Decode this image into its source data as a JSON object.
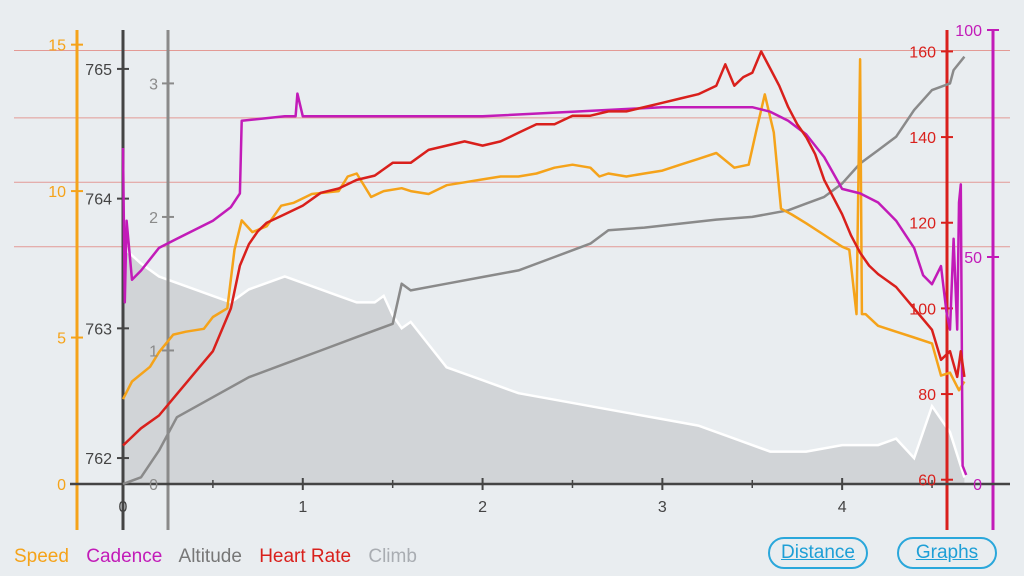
{
  "legend": {
    "speed": "Speed",
    "cadence": "Cadence",
    "altitude": "Altitude",
    "heart_rate": "Heart Rate",
    "climb": "Climb"
  },
  "buttons": {
    "distance": "Distance",
    "graphs": "Graphs"
  },
  "colors": {
    "speed": "#f5a31a",
    "cadence": "#c21bb8",
    "altitude": "#8a8a8a",
    "heart_rate": "#d9201c",
    "climb_fill": "#c8cbcf",
    "climb_line": "#ffffff",
    "background": "#e9edf0",
    "distance_axis": "#444444",
    "gridline": "#e39a95",
    "button": "#2aa7db"
  },
  "chart_data": {
    "type": "line",
    "grid": "horizontal lines only",
    "x": {
      "label": "",
      "range": [
        0,
        4.7
      ],
      "ticks": [
        0,
        1,
        2,
        3,
        4
      ],
      "tick_labels": [
        "0",
        "1",
        "2",
        "3",
        "4"
      ]
    },
    "axes": {
      "speed": {
        "range": [
          0,
          15.5
        ],
        "ticks": [
          0,
          5,
          10,
          15
        ],
        "tick_labels": [
          "0",
          "5",
          "10",
          "15"
        ]
      },
      "climb": {
        "range": [
          761.8,
          765.3
        ],
        "ticks": [
          762,
          763,
          764,
          765
        ],
        "tick_labels": [
          "762",
          "763",
          "764",
          "765"
        ]
      },
      "altitude": {
        "range": [
          0,
          3.4
        ],
        "ticks": [
          0,
          1,
          2,
          3
        ],
        "tick_labels": [
          "0",
          "1",
          "2",
          "3"
        ]
      },
      "heart_rate": {
        "range": [
          59,
          165
        ],
        "ticks": [
          60,
          80,
          100,
          120,
          140,
          160
        ],
        "tick_labels": [
          "60",
          "80",
          "100",
          "120",
          "140",
          "160"
        ]
      },
      "cadence": {
        "range": [
          0,
          100
        ],
        "ticks": [
          0,
          50,
          100
        ],
        "tick_labels": [
          "0",
          "50",
          "100"
        ]
      }
    },
    "series": [
      {
        "name": "Speed",
        "axis": "speed",
        "x": [
          0,
          0.05,
          0.15,
          0.2,
          0.28,
          0.35,
          0.45,
          0.5,
          0.58,
          0.62,
          0.66,
          0.72,
          0.8,
          0.88,
          0.95,
          1.05,
          1.2,
          1.25,
          1.3,
          1.38,
          1.45,
          1.55,
          1.6,
          1.7,
          1.8,
          1.9,
          2.0,
          2.1,
          2.2,
          2.3,
          2.4,
          2.5,
          2.6,
          2.65,
          2.7,
          2.8,
          2.9,
          3.0,
          3.1,
          3.2,
          3.3,
          3.4,
          3.48,
          3.52,
          3.57,
          3.62,
          3.66,
          3.72,
          3.8,
          3.9,
          3.95,
          4.0,
          4.04,
          4.08,
          4.1,
          4.11,
          4.13,
          4.2,
          4.3,
          4.4,
          4.5,
          4.55,
          4.6,
          4.65,
          4.68
        ],
        "values": [
          2.9,
          3.5,
          4.0,
          4.5,
          5.1,
          5.2,
          5.3,
          5.7,
          6.0,
          8.0,
          9.0,
          8.6,
          8.8,
          9.5,
          9.6,
          9.9,
          10.0,
          10.5,
          10.6,
          9.8,
          10.0,
          10.1,
          10.0,
          9.9,
          10.2,
          10.3,
          10.4,
          10.5,
          10.5,
          10.6,
          10.8,
          10.9,
          10.8,
          10.5,
          10.6,
          10.5,
          10.6,
          10.7,
          10.9,
          11.1,
          11.3,
          10.8,
          10.9,
          12.0,
          13.3,
          12.0,
          9.4,
          9.2,
          8.9,
          8.5,
          8.3,
          8.1,
          8.0,
          5.8,
          14.5,
          5.8,
          5.8,
          5.4,
          5.2,
          5.0,
          4.8,
          3.7,
          3.8,
          3.2,
          3.5
        ]
      },
      {
        "name": "Cadence",
        "axis": "cadence",
        "x": [
          0,
          0.01,
          0.02,
          0.05,
          0.1,
          0.2,
          0.3,
          0.4,
          0.5,
          0.6,
          0.65,
          0.66,
          0.9,
          0.96,
          0.97,
          1.0,
          1.5,
          2.0,
          2.5,
          3.0,
          3.5,
          3.6,
          3.7,
          3.8,
          3.9,
          4.0,
          4.1,
          4.2,
          4.3,
          4.4,
          4.45,
          4.5,
          4.55,
          4.58,
          4.6,
          4.62,
          4.64,
          4.65,
          4.66,
          4.67,
          4.69
        ],
        "values": [
          74,
          40,
          58,
          45,
          47,
          52,
          54,
          56,
          58,
          61,
          64,
          80,
          81,
          81,
          86,
          81,
          81,
          81,
          82,
          83,
          83,
          82,
          80,
          77,
          72,
          65,
          64,
          62,
          58,
          52,
          46,
          44,
          48,
          38,
          34,
          54,
          34,
          62,
          66,
          4,
          2
        ]
      },
      {
        "name": "Altitude",
        "axis": "altitude",
        "x": [
          0,
          0.1,
          0.2,
          0.3,
          0.5,
          0.7,
          0.9,
          1.1,
          1.3,
          1.5,
          1.55,
          1.6,
          1.8,
          2.0,
          2.2,
          2.4,
          2.6,
          2.7,
          2.9,
          3.1,
          3.3,
          3.5,
          3.7,
          3.8,
          3.9,
          4.0,
          4.1,
          4.2,
          4.3,
          4.4,
          4.5,
          4.6,
          4.62,
          4.68
        ],
        "values": [
          0.0,
          0.05,
          0.25,
          0.5,
          0.65,
          0.8,
          0.9,
          1.0,
          1.1,
          1.2,
          1.5,
          1.45,
          1.5,
          1.55,
          1.6,
          1.7,
          1.8,
          1.9,
          1.92,
          1.95,
          1.98,
          2.0,
          2.05,
          2.1,
          2.15,
          2.25,
          2.4,
          2.5,
          2.6,
          2.8,
          2.95,
          3.0,
          3.1,
          3.2
        ]
      },
      {
        "name": "Heart Rate",
        "axis": "heart_rate",
        "x": [
          0,
          0.1,
          0.2,
          0.3,
          0.4,
          0.5,
          0.6,
          0.65,
          0.7,
          0.75,
          0.8,
          0.9,
          1.0,
          1.1,
          1.2,
          1.3,
          1.4,
          1.5,
          1.6,
          1.7,
          1.8,
          1.9,
          2.0,
          2.1,
          2.2,
          2.3,
          2.4,
          2.5,
          2.6,
          2.7,
          2.8,
          2.9,
          3.0,
          3.1,
          3.2,
          3.3,
          3.35,
          3.4,
          3.45,
          3.5,
          3.55,
          3.6,
          3.65,
          3.7,
          3.75,
          3.8,
          3.85,
          3.9,
          4.0,
          4.05,
          4.1,
          4.15,
          4.2,
          4.3,
          4.4,
          4.5,
          4.55,
          4.6,
          4.64,
          4.66,
          4.68
        ],
        "values": [
          68,
          72,
          75,
          80,
          85,
          90,
          100,
          110,
          115,
          118,
          120,
          122,
          124,
          127,
          128,
          130,
          131,
          134,
          134,
          137,
          138,
          139,
          138,
          139,
          141,
          143,
          143,
          145,
          145,
          146,
          146,
          147,
          148,
          149,
          150,
          152,
          157,
          152,
          154,
          155,
          160,
          156,
          152,
          147,
          143,
          140,
          136,
          130,
          122,
          117,
          113,
          110,
          108,
          105,
          100,
          95,
          88,
          90,
          84,
          90,
          84
        ]
      },
      {
        "name": "Climb",
        "axis": "climb",
        "x": [
          0,
          0.02,
          0.1,
          0.2,
          0.3,
          0.4,
          0.5,
          0.6,
          0.7,
          0.8,
          0.9,
          1.0,
          1.1,
          1.2,
          1.3,
          1.4,
          1.45,
          1.5,
          1.55,
          1.6,
          1.8,
          2.0,
          2.2,
          2.4,
          2.6,
          2.8,
          3.0,
          3.2,
          3.4,
          3.6,
          3.8,
          4.0,
          4.1,
          4.2,
          4.3,
          4.4,
          4.5,
          4.6,
          4.68
        ],
        "values": [
          763.8,
          763.6,
          763.5,
          763.4,
          763.35,
          763.3,
          763.25,
          763.2,
          763.3,
          763.35,
          763.4,
          763.35,
          763.3,
          763.25,
          763.2,
          763.2,
          763.25,
          763.1,
          763.0,
          763.05,
          762.7,
          762.6,
          762.5,
          762.45,
          762.4,
          762.35,
          762.3,
          762.25,
          762.15,
          762.05,
          762.05,
          762.1,
          762.1,
          762.1,
          762.15,
          762.0,
          762.4,
          762.2,
          761.85
        ]
      }
    ]
  }
}
